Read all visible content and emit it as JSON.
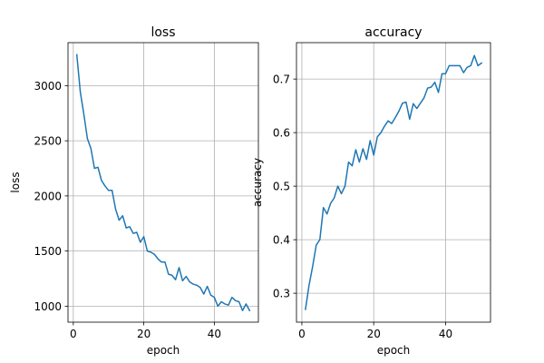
{
  "chart_data": [
    {
      "type": "line",
      "title": "loss",
      "xlabel": "epoch",
      "ylabel": "loss",
      "xlim": [
        -1.5,
        52.5
      ],
      "ylim": [
        855,
        3390
      ],
      "xticks": [
        0,
        20,
        40
      ],
      "yticks": [
        1000,
        1500,
        2000,
        2500,
        3000
      ],
      "grid": true,
      "color": "#1f77b4",
      "x": [
        1,
        2,
        3,
        4,
        5,
        6,
        7,
        8,
        9,
        10,
        11,
        12,
        13,
        14,
        15,
        16,
        17,
        18,
        19,
        20,
        21,
        22,
        23,
        24,
        25,
        26,
        27,
        28,
        29,
        30,
        31,
        32,
        33,
        34,
        35,
        36,
        37,
        38,
        39,
        40,
        41,
        42,
        43,
        44,
        45,
        46,
        47,
        48,
        49,
        50
      ],
      "y": [
        3280,
        2940,
        2740,
        2520,
        2430,
        2250,
        2260,
        2140,
        2090,
        2050,
        2050,
        1880,
        1780,
        1820,
        1710,
        1720,
        1660,
        1670,
        1580,
        1630,
        1500,
        1490,
        1470,
        1430,
        1400,
        1400,
        1290,
        1280,
        1240,
        1350,
        1230,
        1270,
        1220,
        1200,
        1190,
        1170,
        1110,
        1180,
        1100,
        1080,
        1000,
        1040,
        1020,
        1010,
        1080,
        1050,
        1040,
        960,
        1020,
        960
      ]
    },
    {
      "type": "line",
      "title": "accuracy",
      "xlabel": "epoch",
      "ylabel": "accuracy",
      "xlim": [
        -1.5,
        52.5
      ],
      "ylim": [
        0.246,
        0.768
      ],
      "xticks": [
        0,
        20,
        40
      ],
      "yticks": [
        0.3,
        0.4,
        0.5,
        0.6,
        0.7
      ],
      "grid": true,
      "color": "#1f77b4",
      "x": [
        1,
        2,
        3,
        4,
        5,
        6,
        7,
        8,
        9,
        10,
        11,
        12,
        13,
        14,
        15,
        16,
        17,
        18,
        19,
        20,
        21,
        22,
        23,
        24,
        25,
        26,
        27,
        28,
        29,
        30,
        31,
        32,
        33,
        34,
        35,
        36,
        37,
        38,
        39,
        40,
        41,
        42,
        43,
        44,
        45,
        46,
        47,
        48,
        49,
        50
      ],
      "y": [
        0.27,
        0.315,
        0.35,
        0.39,
        0.4,
        0.46,
        0.448,
        0.468,
        0.478,
        0.5,
        0.486,
        0.5,
        0.545,
        0.538,
        0.568,
        0.545,
        0.57,
        0.55,
        0.585,
        0.558,
        0.592,
        0.6,
        0.612,
        0.622,
        0.617,
        0.628,
        0.64,
        0.655,
        0.657,
        0.625,
        0.654,
        0.645,
        0.655,
        0.665,
        0.683,
        0.685,
        0.694,
        0.675,
        0.71,
        0.71,
        0.725,
        0.725,
        0.725,
        0.725,
        0.712,
        0.722,
        0.725,
        0.744,
        0.725,
        0.73
      ]
    }
  ]
}
